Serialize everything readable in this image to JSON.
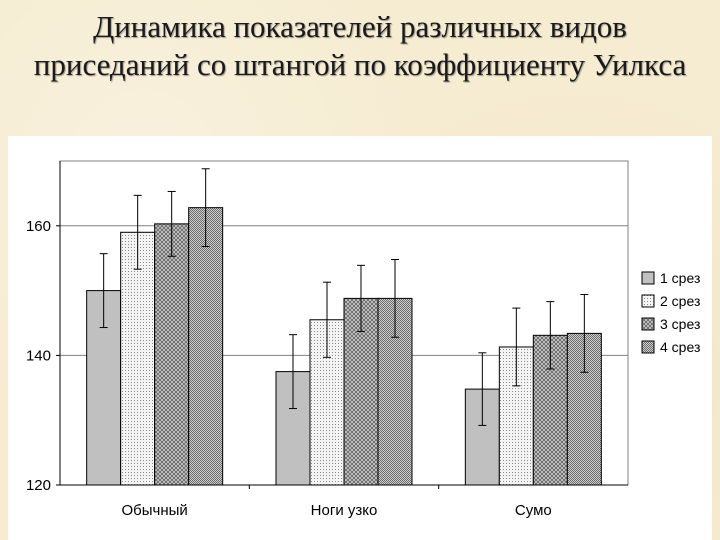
{
  "slide": {
    "title": "Динамика показателей различных видов приседаний со штангой по коэффициенту Уилкса"
  },
  "chart_data": {
    "type": "bar",
    "title": "",
    "xlabel": "",
    "ylabel": "",
    "ylim": [
      120,
      170
    ],
    "yticks": [
      120,
      140,
      160
    ],
    "grid": true,
    "legend_position": "right",
    "categories": [
      "Обычный",
      "Ноги узко",
      "Сумо"
    ],
    "series": [
      {
        "name": "1 срез",
        "values": [
          150.0,
          137.5,
          134.8
        ],
        "errors": [
          5.7,
          5.7,
          5.6
        ],
        "color": "#c0c0c0",
        "pattern": "none"
      },
      {
        "name": "2 срез",
        "values": [
          159.0,
          145.5,
          141.3
        ],
        "errors": [
          5.7,
          5.8,
          6.0
        ],
        "color": "#f0f0f0",
        "pattern": "dots"
      },
      {
        "name": "3 срез",
        "values": [
          160.3,
          148.8,
          143.1
        ],
        "errors": [
          5.0,
          5.1,
          5.2
        ],
        "color": "#a8a8a8",
        "pattern": "cross"
      },
      {
        "name": "4 срез",
        "values": [
          162.8,
          148.8,
          143.4
        ],
        "errors": [
          6.0,
          6.0,
          6.0
        ],
        "color": "#b4b4b4",
        "pattern": "fine"
      }
    ]
  }
}
